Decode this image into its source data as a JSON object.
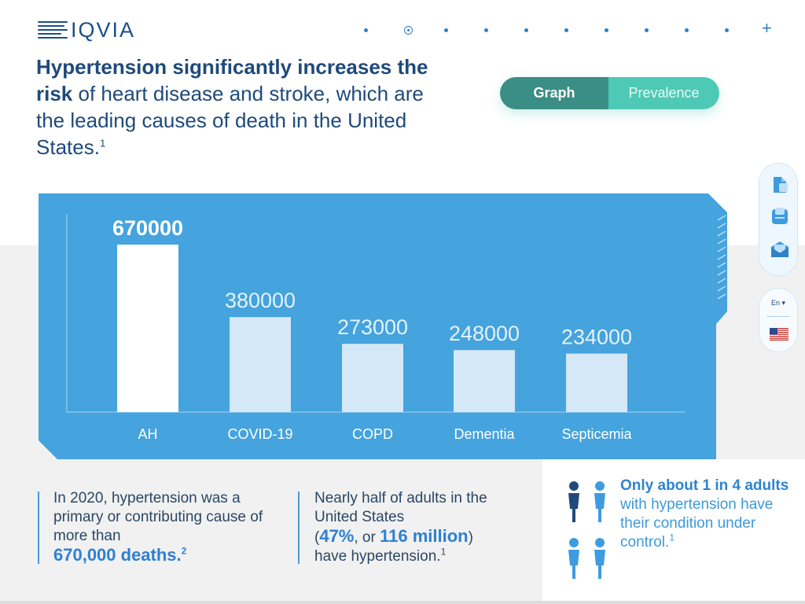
{
  "logo": {
    "text": "IQVIA"
  },
  "nav": {
    "dot_count": 10,
    "active_index": 1,
    "plus": "+"
  },
  "headline": {
    "bold": "Hypertension significantly increases the risk",
    "rest": " of heart disease and stroke, which are the leading causes of death in the United States.",
    "footnote": "1"
  },
  "toggle": {
    "graph": "Graph",
    "prevalence": "Prevalence",
    "active": "Graph"
  },
  "tools": {
    "icons": [
      "document-icon",
      "print-icon",
      "mail-icon"
    ]
  },
  "language": {
    "label": "En",
    "flag": "us-flag-icon"
  },
  "colors": {
    "panel": "#45a3dd",
    "bar_highlight": "#ffffff",
    "bar": "#d5e8f7",
    "accent": "#2e7fd4",
    "toggle_active": "#3a8e85",
    "toggle_inactive": "#4ec9b5"
  },
  "chart_data": {
    "type": "bar",
    "categories": [
      "AH",
      "COVID-19",
      "COPD",
      "Dementia",
      "Septicemia"
    ],
    "values": [
      670000,
      380000,
      273000,
      248000,
      234000
    ],
    "labels": [
      "670000",
      "380000",
      "273000",
      "248000",
      "234000"
    ],
    "highlight_index": 0,
    "grid": false
  },
  "stats": {
    "s1_text": "In 2020, hypertension was a primary or contributing cause of more than",
    "s1_big": "670,000 deaths.",
    "s1_footnote": "2",
    "s2_line1": "Nearly half of adults in the United States",
    "s2_open": "(",
    "s2_pct": "47%",
    "s2_mid": ", or ",
    "s2_num": "116 million",
    "s2_close": ")",
    "s2_line3": "have hypertension.",
    "s2_footnote": "1",
    "s3_strong": "Only about 1 in 4 adults",
    "s3_rest": "with hypertension have their condition under control.",
    "s3_footnote": "1"
  }
}
